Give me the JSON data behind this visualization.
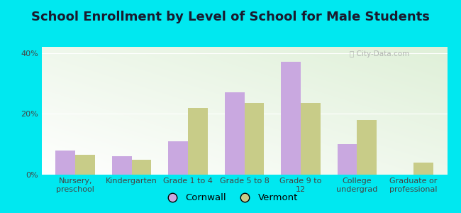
{
  "title": "School Enrollment by Level of School for Male Students",
  "categories": [
    "Nursery,\npreschool",
    "Kindergarten",
    "Grade 1 to 4",
    "Grade 5 to 8",
    "Grade 9 to\n12",
    "College\nundergrad",
    "Graduate or\nprofessional"
  ],
  "cornwall": [
    8,
    6,
    11,
    27,
    37,
    10,
    0
  ],
  "vermont": [
    6.5,
    5,
    22,
    23.5,
    23.5,
    18,
    4
  ],
  "cornwall_color": "#c9a8e0",
  "vermont_color": "#c8cc88",
  "background_color": "#00e8f0",
  "ylabel_ticks": [
    "0%",
    "20%",
    "40%"
  ],
  "yticks": [
    0,
    20,
    40
  ],
  "ylim": [
    0,
    42
  ],
  "bar_width": 0.35,
  "title_fontsize": 13,
  "tick_fontsize": 8,
  "legend_fontsize": 9.5
}
